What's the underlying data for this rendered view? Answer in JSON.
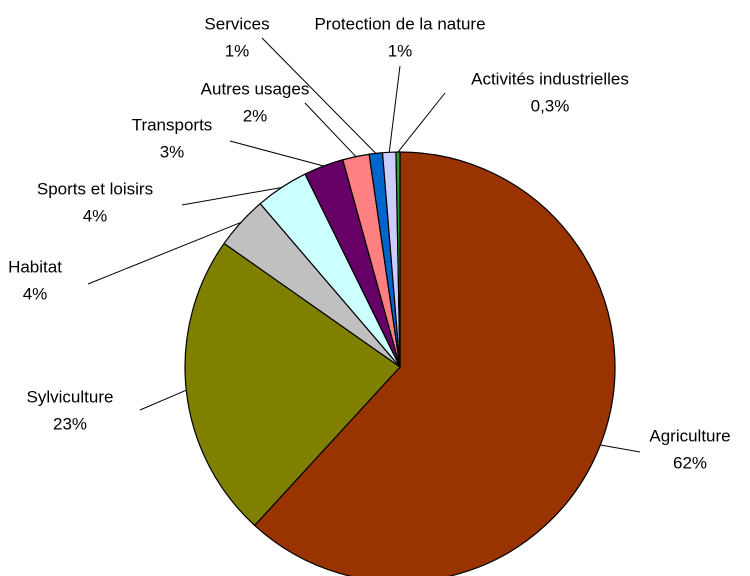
{
  "chart_data": {
    "type": "pie",
    "categories": [
      "Agriculture",
      "Sylviculture",
      "Habitat",
      "Sports et loisirs",
      "Transports",
      "Autres usages",
      "Services",
      "Protection de la nature",
      "Activités industrielles"
    ],
    "values": [
      62,
      23,
      4,
      4,
      3,
      2,
      1,
      1,
      0.3
    ],
    "value_labels": [
      "62%",
      "23%",
      "4%",
      "4%",
      "3%",
      "2%",
      "1%",
      "1%",
      "0,3%"
    ],
    "colors": [
      "#993300",
      "#808000",
      "#c0c0c0",
      "#ccffff",
      "#660066",
      "#ff8080",
      "#0066cc",
      "#ccccff",
      "#339933"
    ]
  }
}
